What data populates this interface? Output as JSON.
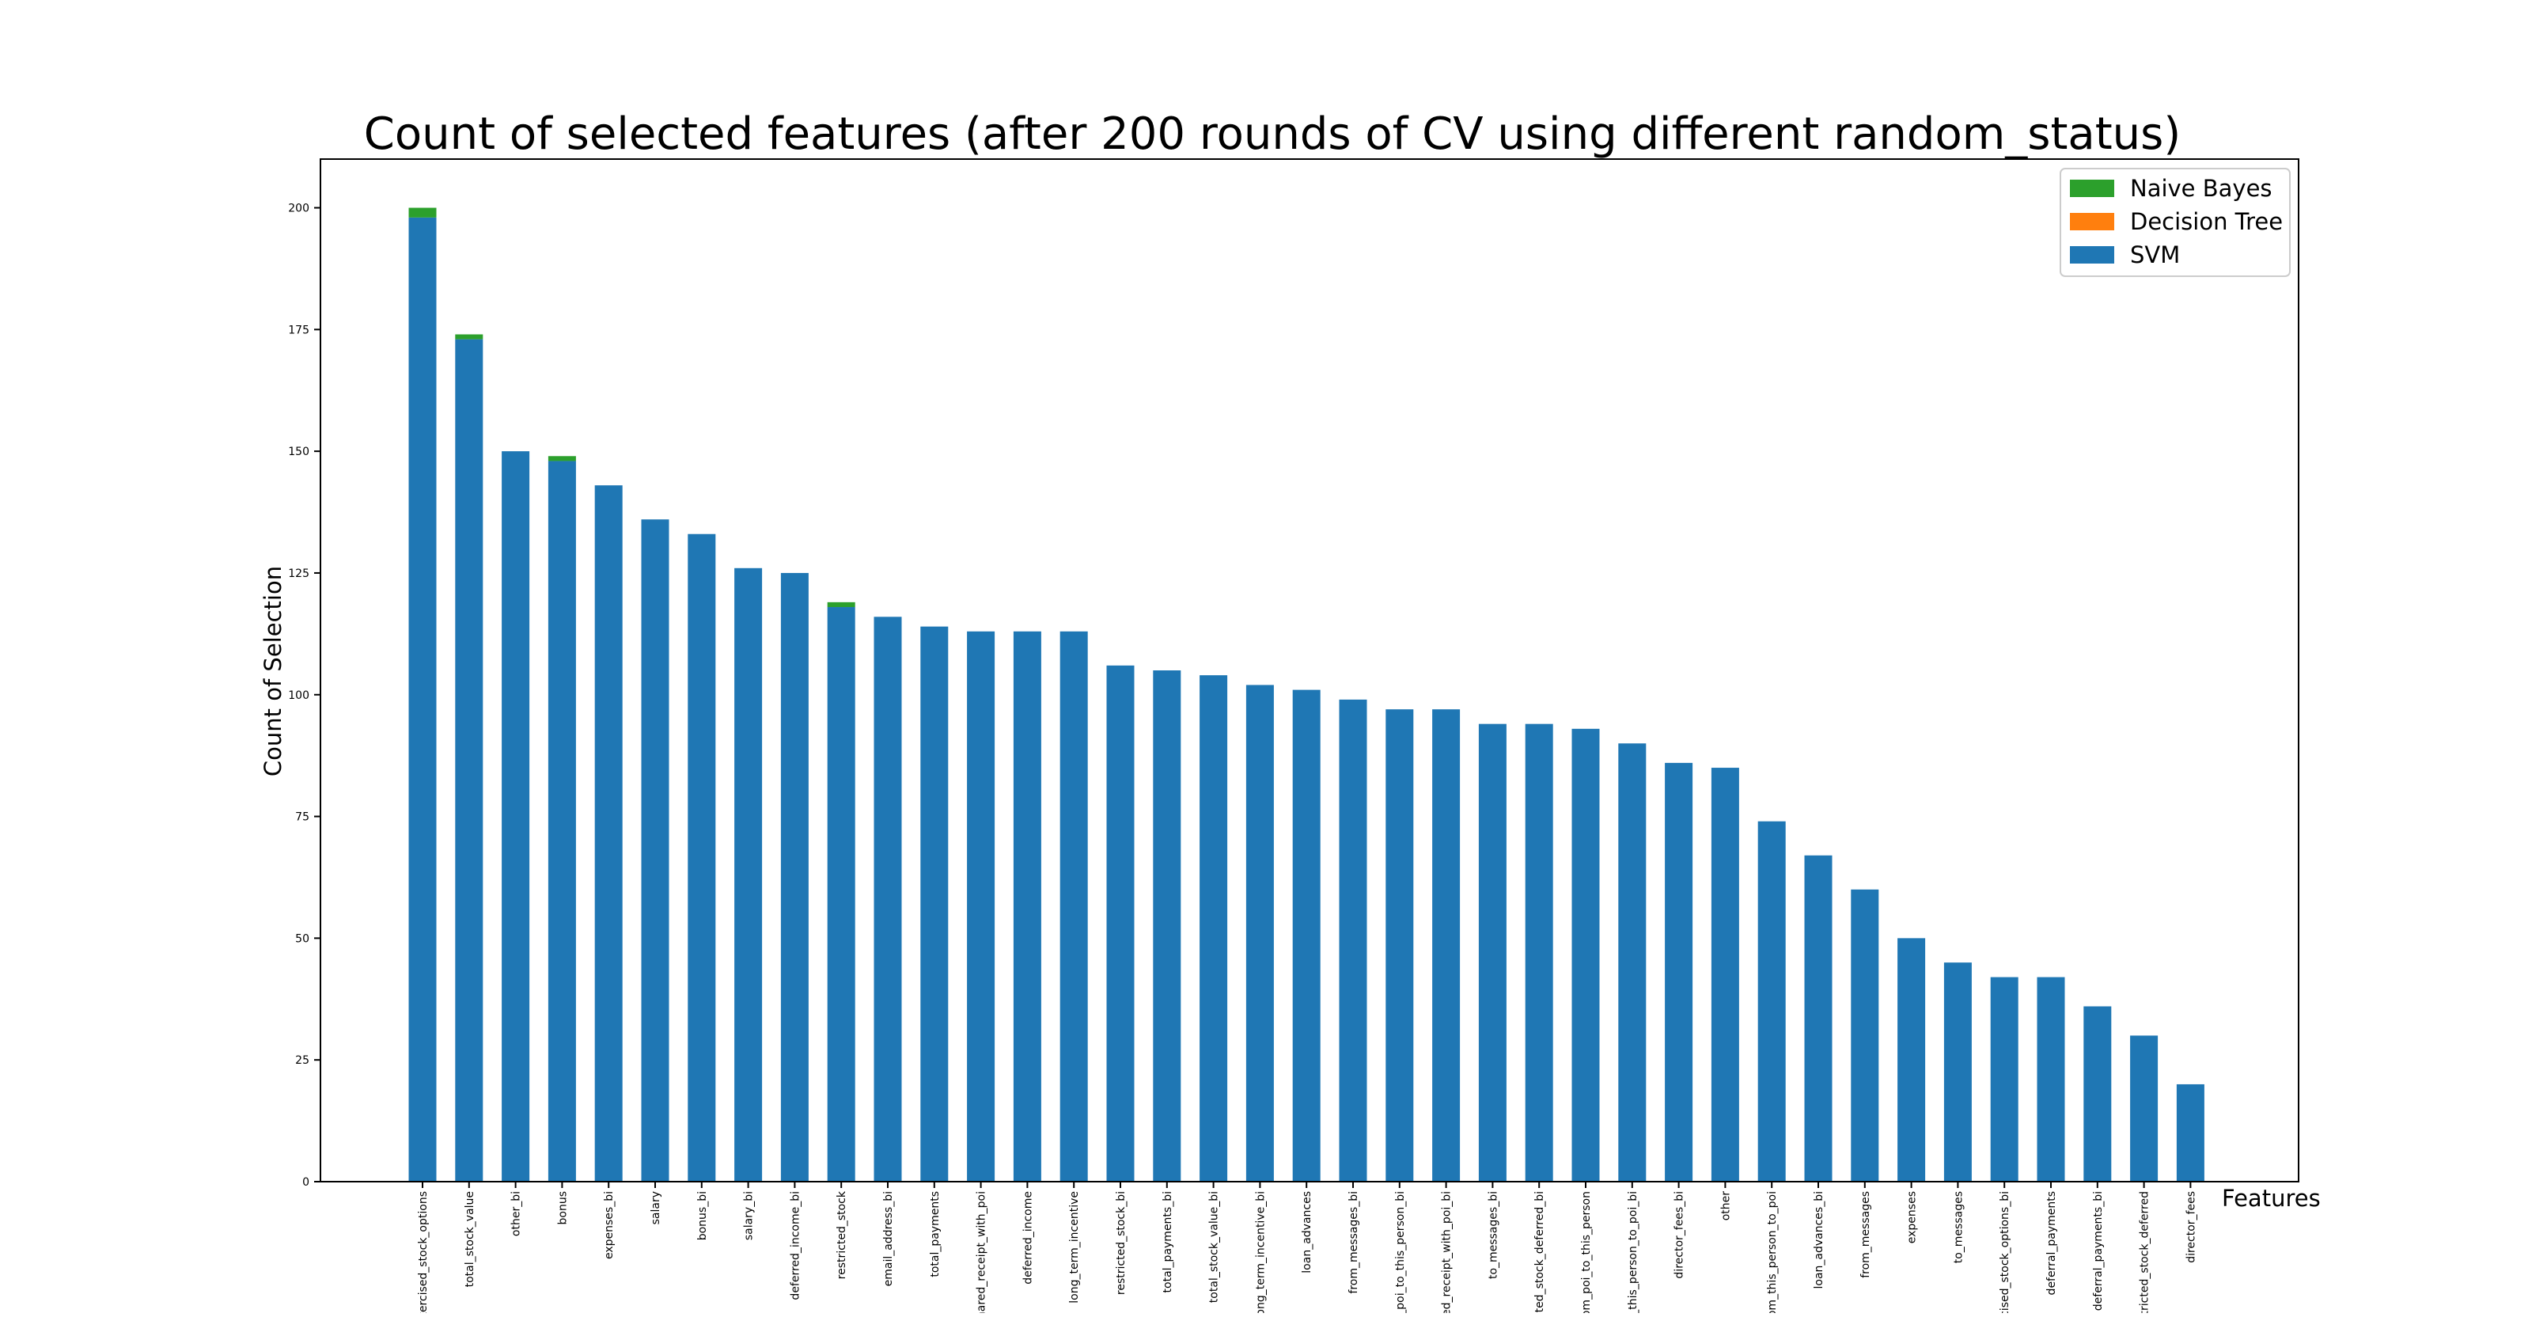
{
  "chart_data": {
    "type": "bar",
    "stacked": true,
    "title": "Count of selected features (after 200 rounds of CV using different random_status)",
    "xlabel": "Features",
    "ylabel": "Count of Selection",
    "ylim": [
      0,
      210
    ],
    "yticks": [
      0,
      25,
      50,
      75,
      100,
      125,
      150,
      175,
      200
    ],
    "grid": false,
    "legend_position": "top-right",
    "categories": [
      "exercised_stock_options",
      "total_stock_value",
      "other_bi",
      "bonus",
      "expenses_bi",
      "salary",
      "bonus_bi",
      "salary_bi",
      "deferred_income_bi",
      "restricted_stock",
      "email_address_bi",
      "total_payments",
      "shared_receipt_with_poi",
      "deferred_income",
      "long_term_incentive",
      "restricted_stock_bi",
      "total_payments_bi",
      "total_stock_value_bi",
      "long_term_incentive_bi",
      "loan_advances",
      "from_messages_bi",
      "from_poi_to_this_person_bi",
      "shared_receipt_with_poi_bi",
      "to_messages_bi",
      "restricted_stock_deferred_bi",
      "from_poi_to_this_person",
      "from_this_person_to_poi_bi",
      "director_fees_bi",
      "other",
      "from_this_person_to_poi",
      "loan_advances_bi",
      "from_messages",
      "expenses",
      "to_messages",
      "exercised_stock_options_bi",
      "deferral_payments",
      "deferral_payments_bi",
      "restricted_stock_deferred",
      "director_fees"
    ],
    "series": [
      {
        "name": "SVM",
        "color": "#1f77b4",
        "values": [
          198,
          173,
          150,
          148,
          143,
          136,
          133,
          126,
          125,
          118,
          116,
          114,
          113,
          113,
          113,
          106,
          105,
          104,
          102,
          101,
          99,
          97,
          97,
          94,
          94,
          93,
          90,
          86,
          85,
          74,
          67,
          60,
          50,
          45,
          42,
          42,
          36,
          30,
          20
        ]
      },
      {
        "name": "Decision Tree",
        "color": "#ff7f0e",
        "values": [
          0,
          0,
          0,
          0,
          0,
          0,
          0,
          0,
          0,
          0,
          0,
          0,
          0,
          0,
          0,
          0,
          0,
          0,
          0,
          0,
          0,
          0,
          0,
          0,
          0,
          0,
          0,
          0,
          0,
          0,
          0,
          0,
          0,
          0,
          0,
          0,
          0,
          0,
          0
        ]
      },
      {
        "name": "Naive Bayes",
        "color": "#2ca02c",
        "values": [
          2,
          1,
          0,
          1,
          0,
          0,
          0,
          0,
          0,
          1,
          0,
          0,
          0,
          0,
          0,
          0,
          0,
          0,
          0,
          0,
          0,
          0,
          0,
          0,
          0,
          0,
          0,
          0,
          0,
          0,
          0,
          0,
          0,
          0,
          0,
          0,
          0,
          0,
          0
        ]
      }
    ],
    "legend_order": [
      "Naive Bayes",
      "Decision Tree",
      "SVM"
    ]
  }
}
